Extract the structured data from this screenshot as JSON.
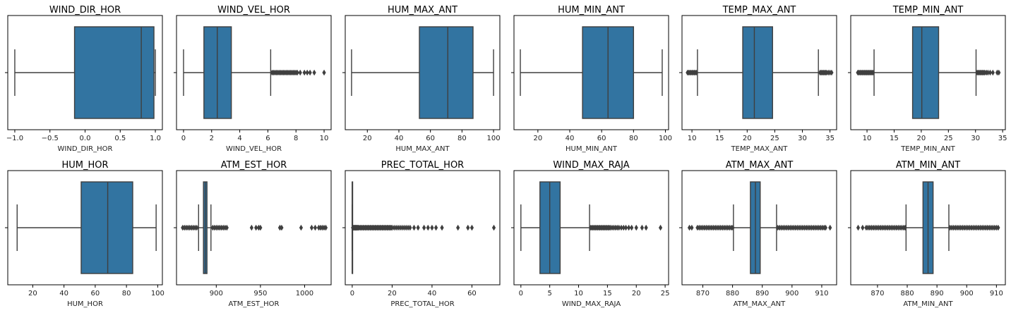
{
  "colors": {
    "box": "#3274a1",
    "line": "#3f3f3f",
    "frame": "#000000"
  },
  "chart_data": [
    {
      "type": "boxplot",
      "title": "WIND_DIR_HOR",
      "xlabel": "WIND_DIR_HOR",
      "xlim": [
        -1.1,
        1.1
      ],
      "ticks": [
        -1.0,
        -0.5,
        0.0,
        0.5,
        1.0
      ],
      "tick_labels": [
        "−1.0",
        "−0.5",
        "0.0",
        "0.5",
        "1.0"
      ],
      "whisker_low": -1.0,
      "q1": -0.15,
      "median": 0.8,
      "q3": 0.98,
      "whisker_high": 1.0,
      "outliers": []
    },
    {
      "type": "boxplot",
      "title": "WIND_VEL_HOR",
      "xlabel": "WIND_VEL_HOR",
      "xlim": [
        -0.5,
        10.5
      ],
      "ticks": [
        0,
        2,
        4,
        6,
        8,
        10
      ],
      "tick_labels": [
        "0",
        "2",
        "4",
        "6",
        "8",
        "10"
      ],
      "whisker_low": 0,
      "q1": 1.45,
      "median": 2.4,
      "q3": 3.4,
      "whisker_high": 6.2,
      "outliers": [
        6.3,
        6.4,
        6.5,
        6.6,
        6.7,
        6.8,
        6.9,
        7.0,
        7.1,
        7.2,
        7.3,
        7.4,
        7.5,
        7.6,
        7.7,
        7.8,
        7.9,
        8.0,
        8.1,
        8.3,
        8.6,
        8.8,
        9.0,
        9.3,
        10.0
      ]
    },
    {
      "type": "boxplot",
      "title": "HUM_MAX_ANT",
      "xlabel": "HUM_MAX_ANT",
      "xlim": [
        6,
        104
      ],
      "ticks": [
        20,
        40,
        60,
        80,
        100
      ],
      "tick_labels": [
        "20",
        "40",
        "60",
        "80",
        "100"
      ],
      "whisker_low": 10,
      "q1": 53,
      "median": 71,
      "q3": 87,
      "whisker_high": 100,
      "outliers": []
    },
    {
      "type": "boxplot",
      "title": "HUM_MIN_ANT",
      "xlabel": "HUM_MIN_ANT",
      "xlim": [
        5,
        102
      ],
      "ticks": [
        20,
        40,
        60,
        80,
        100
      ],
      "tick_labels": [
        "20",
        "40",
        "60",
        "80",
        "100"
      ],
      "whisker_low": 9,
      "q1": 48,
      "median": 64,
      "q3": 80,
      "whisker_high": 98,
      "outliers": []
    },
    {
      "type": "boxplot",
      "title": "TEMP_MAX_ANT",
      "xlabel": "TEMP_MAX_ANT",
      "xlim": [
        8.2,
        36.2
      ],
      "ticks": [
        10,
        15,
        20,
        25,
        30,
        35
      ],
      "tick_labels": [
        "10",
        "15",
        "20",
        "25",
        "30",
        "35"
      ],
      "whisker_low": 11.0,
      "q1": 19.2,
      "median": 21.3,
      "q3": 24.6,
      "whisker_high": 32.9,
      "outliers": [
        9.2,
        9.4,
        9.6,
        9.8,
        10.0,
        10.2,
        10.4,
        10.6,
        10.8,
        33.2,
        33.4,
        33.6,
        33.8,
        34.0,
        34.2,
        34.4,
        34.7,
        35.0,
        35.3
      ]
    },
    {
      "type": "boxplot",
      "title": "TEMP_MIN_ANT",
      "xlabel": "TEMP_MIN_ANT",
      "xlim": [
        7.0,
        35.5
      ],
      "ticks": [
        10,
        15,
        20,
        25,
        30,
        35
      ],
      "tick_labels": [
        "10",
        "15",
        "20",
        "25",
        "30",
        "35"
      ],
      "whisker_low": 11.3,
      "q1": 18.4,
      "median": 20.1,
      "q3": 23.2,
      "whisker_high": 30.1,
      "outliers": [
        8.3,
        8.5,
        8.7,
        8.9,
        9.1,
        9.3,
        9.5,
        9.7,
        9.9,
        10.1,
        10.3,
        10.5,
        10.7,
        10.9,
        11.1,
        30.3,
        30.5,
        30.7,
        30.9,
        31.1,
        31.3,
        31.5,
        31.7,
        32.0,
        32.3,
        32.7,
        33.2,
        34.0,
        34.3
      ]
    },
    {
      "type": "boxplot",
      "title": "HUM_HOR",
      "xlabel": "HUM_HOR",
      "xlim": [
        4,
        103
      ],
      "ticks": [
        20,
        40,
        60,
        80,
        100
      ],
      "tick_labels": [
        "20",
        "40",
        "60",
        "80",
        "100"
      ],
      "whisker_low": 10,
      "q1": 51,
      "median": 68,
      "q3": 84,
      "whisker_high": 99,
      "outliers": []
    },
    {
      "type": "boxplot",
      "title": "ATM_EST_HOR",
      "xlabel": "ATM_EST_HOR",
      "xlim": [
        855,
        1030
      ],
      "ticks": [
        900,
        950,
        1000
      ],
      "tick_labels": [
        "900",
        "950",
        "1000"
      ],
      "whisker_low": 880,
      "q1": 885.5,
      "median": 887.5,
      "q3": 889.5,
      "whisker_high": 894,
      "outliers": [
        862,
        864,
        866,
        868,
        870,
        872,
        874,
        876,
        878,
        896,
        898,
        900,
        902,
        904,
        906,
        908,
        910,
        912,
        940,
        945,
        948,
        950,
        972,
        974,
        996,
        1008,
        1012,
        1016,
        1018,
        1020,
        1022,
        1024
      ]
    },
    {
      "type": "boxplot",
      "title": "PREC_TOTAL_HOR",
      "xlabel": "PREC_TOTAL_HOR",
      "xlim": [
        -3.5,
        74
      ],
      "ticks": [
        0,
        20,
        40,
        60
      ],
      "tick_labels": [
        "0",
        "20",
        "40",
        "60"
      ],
      "whisker_low": 0,
      "q1": 0,
      "median": 0,
      "q3": 0,
      "whisker_high": 0,
      "outliers": [
        0.3,
        0.6,
        0.9,
        1.2,
        1.5,
        1.8,
        2.1,
        2.4,
        2.7,
        3,
        3.5,
        4,
        4.5,
        5,
        5.5,
        6,
        6.5,
        7,
        7.5,
        8,
        8.5,
        9,
        9.5,
        10,
        10.5,
        11,
        11.5,
        12,
        12.5,
        13,
        13.5,
        14,
        14.5,
        15,
        15.5,
        16,
        16.5,
        17,
        17.5,
        18,
        18.5,
        19,
        19.5,
        20,
        21,
        22,
        23,
        24,
        25,
        26,
        27,
        28,
        29,
        31,
        33,
        36,
        38,
        40,
        42,
        45,
        53,
        58,
        60,
        71
      ]
    },
    {
      "type": "boxplot",
      "title": "WIND_MAX_RAJA",
      "xlabel": "WIND_MAX_RAJA",
      "xlim": [
        -1.2,
        25.6
      ],
      "ticks": [
        0,
        5,
        10,
        15,
        20,
        25
      ],
      "tick_labels": [
        "0",
        "5",
        "10",
        "15",
        "20",
        "25"
      ],
      "whisker_low": 0,
      "q1": 3.3,
      "median": 5.0,
      "q3": 6.8,
      "whisker_high": 11.9,
      "outliers": [
        12.1,
        12.3,
        12.5,
        12.7,
        12.9,
        13.1,
        13.3,
        13.5,
        13.7,
        13.9,
        14.1,
        14.3,
        14.5,
        14.7,
        14.9,
        15.1,
        15.3,
        15.5,
        15.8,
        16.1,
        16.4,
        16.7,
        17.0,
        17.4,
        17.8,
        18.2,
        18.7,
        19.2,
        20.0,
        21.0,
        21.7,
        24.2
      ]
    },
    {
      "type": "boxplot",
      "title": "ATM_MAX_ANT",
      "xlabel": "ATM_MAX_ANT",
      "xlim": [
        863,
        915
      ],
      "ticks": [
        870,
        880,
        890,
        900,
        910
      ],
      "tick_labels": [
        "870",
        "880",
        "890",
        "900",
        "910"
      ],
      "whisker_low": 880.3,
      "q1": 886.0,
      "median": 887.7,
      "q3": 889.3,
      "whisker_high": 894.8,
      "outliers": [
        865.5,
        866.3,
        868.2,
        868.8,
        869.4,
        870.0,
        870.6,
        871.2,
        871.8,
        872.4,
        873.0,
        873.6,
        874.2,
        874.8,
        875.4,
        876.0,
        876.6,
        877.2,
        877.8,
        878.4,
        879.0,
        879.6,
        880.1,
        895.2,
        895.8,
        896.4,
        897.0,
        897.6,
        898.2,
        898.8,
        899.4,
        900.0,
        900.6,
        901.2,
        901.8,
        902.4,
        903.0,
        903.6,
        904.2,
        904.8,
        905.4,
        906.0,
        906.6,
        907.2,
        907.8,
        908.4,
        909.0,
        909.6,
        910.2,
        910.8,
        911.3,
        912.8
      ]
    },
    {
      "type": "boxplot",
      "title": "ATM_MIN_ANT",
      "xlabel": "ATM_MIN_ANT",
      "xlim": [
        861,
        913
      ],
      "ticks": [
        870,
        880,
        890,
        900,
        910
      ],
      "tick_labels": [
        "870",
        "880",
        "890",
        "900",
        "910"
      ],
      "whisker_low": 879.6,
      "q1": 885.3,
      "median": 887.0,
      "q3": 888.7,
      "whisker_high": 894.0,
      "outliers": [
        863.5,
        865.0,
        866.2,
        866.8,
        867.4,
        868.0,
        868.6,
        869.2,
        869.8,
        870.4,
        871.0,
        871.6,
        872.2,
        872.8,
        873.4,
        874.0,
        874.6,
        875.2,
        875.8,
        876.4,
        877.0,
        877.6,
        878.2,
        878.8,
        879.3,
        894.4,
        895.0,
        895.6,
        896.2,
        896.8,
        897.4,
        898.0,
        898.6,
        899.2,
        899.8,
        900.4,
        901.0,
        901.6,
        902.2,
        902.8,
        903.4,
        904.0,
        904.6,
        905.2,
        905.8,
        906.4,
        907.0,
        907.6,
        908.2,
        908.8,
        909.4,
        910.0,
        910.6
      ]
    }
  ]
}
